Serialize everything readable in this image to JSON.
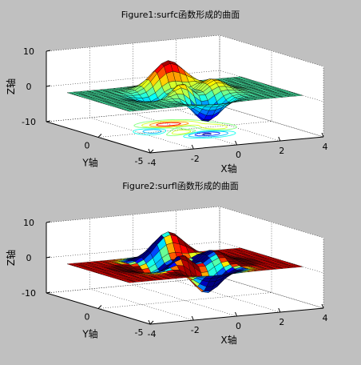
{
  "figure": {
    "background": "#c0c0c0"
  },
  "chart_data": [
    {
      "type": "surface",
      "variant": "surfc",
      "title": "Figure1:surfc函数形成的曲面",
      "function": "peaks",
      "x_range": [
        -4,
        4
      ],
      "y_range": [
        -5,
        5
      ],
      "z_range": [
        -10,
        10
      ],
      "xlabel": "X轴",
      "ylabel": "Y轴",
      "zlabel": "Z轴",
      "x_ticks": [
        "-4",
        "-2",
        "0",
        "2",
        "4"
      ],
      "y_ticks": [
        "-5",
        "0"
      ],
      "z_ticks": [
        "-10",
        "0",
        "10"
      ],
      "contour_below": true,
      "grid": true,
      "colormap": "jet"
    },
    {
      "type": "surface",
      "variant": "surfl",
      "title": "Figure2:surfl函数形成的曲面",
      "function": "peaks",
      "x_range": [
        -4,
        4
      ],
      "y_range": [
        -5,
        5
      ],
      "z_range": [
        -10,
        10
      ],
      "xlabel": "X轴",
      "ylabel": "Y轴",
      "zlabel": "Z轴",
      "x_ticks": [
        "-4",
        "-2",
        "0",
        "2",
        "4"
      ],
      "y_ticks": [
        "-5",
        "0"
      ],
      "z_ticks": [
        "-10",
        "0",
        "10"
      ],
      "contour_below": false,
      "grid": true,
      "colormap": "jet",
      "lighting": true
    }
  ]
}
